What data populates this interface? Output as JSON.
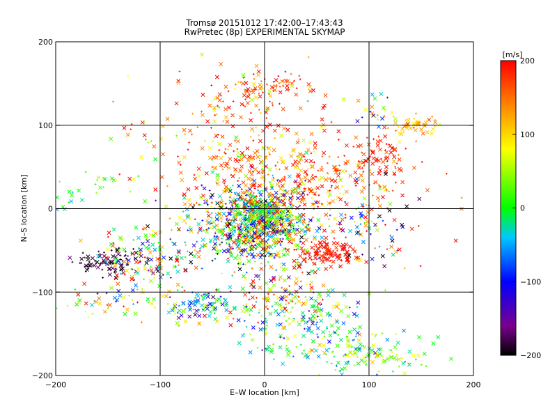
{
  "chart_data": {
    "type": "scatter",
    "title": "Tromsø 20151012 17:42:00–17:43:43",
    "subtitle": "RwPretec (8p) EXPERIMENTAL SKYMAP",
    "xlabel": "E–W location [km]",
    "ylabel": "N–S location [km]",
    "xlim": [
      -200,
      200
    ],
    "ylim": [
      -200,
      200
    ],
    "xticks": [
      -200,
      -100,
      0,
      100,
      200
    ],
    "yticks": [
      -200,
      -100,
      0,
      100,
      200
    ],
    "xtick_labels": [
      "−200",
      "−100",
      "0",
      "100",
      "200"
    ],
    "ytick_labels": [
      "−200",
      "−100",
      "0",
      "100",
      "200"
    ],
    "grid": true,
    "colorbar": {
      "label": "[m/s]",
      "vmin": -200,
      "vmax": 200,
      "ticks": [
        200,
        100,
        0,
        -100,
        -200
      ],
      "tick_labels": [
        "200",
        "100",
        "0",
        "−100",
        "−200"
      ],
      "colors": [
        "#000000",
        "#7a0090",
        "#0000ff",
        "#00c8ff",
        "#00ff00",
        "#ffff00",
        "#ff9600",
        "#ff0000"
      ]
    },
    "markers": [
      "x",
      "+"
    ],
    "clusters": [
      {
        "cx": -10,
        "cy": -20,
        "sx": 30,
        "sy": 25,
        "n": 900,
        "vmean": 0,
        "vsd": 120
      },
      {
        "cx": 0,
        "cy": -5,
        "sx": 10,
        "sy": 10,
        "n": 220,
        "vmean": 20,
        "vsd": 80
      },
      {
        "cx": 60,
        "cy": -55,
        "sx": 15,
        "sy": 8,
        "n": 130,
        "vmean": 190,
        "vsd": 10
      },
      {
        "cx": 40,
        "cy": 30,
        "sx": 45,
        "sy": 30,
        "n": 260,
        "vmean": 160,
        "vsd": 50
      },
      {
        "cx": -20,
        "cy": 70,
        "sx": 55,
        "sy": 40,
        "n": 260,
        "vmean": 150,
        "vsd": 70
      },
      {
        "cx": 0,
        "cy": 140,
        "sx": 25,
        "sy": 12,
        "n": 90,
        "vmean": 170,
        "vsd": 30
      },
      {
        "cx": 110,
        "cy": 60,
        "sx": 15,
        "sy": 20,
        "n": 80,
        "vmean": 180,
        "vsd": 20
      },
      {
        "cx": 140,
        "cy": 100,
        "sx": 12,
        "sy": 8,
        "n": 50,
        "vmean": 110,
        "vsd": 30
      },
      {
        "cx": -150,
        "cy": -65,
        "sx": 15,
        "sy": 8,
        "n": 90,
        "vmean": -190,
        "vsd": 15
      },
      {
        "cx": -110,
        "cy": -60,
        "sx": 25,
        "sy": 20,
        "n": 150,
        "vmean": 40,
        "vsd": 140
      },
      {
        "cx": 40,
        "cy": -145,
        "sx": 30,
        "sy": 20,
        "n": 140,
        "vmean": -20,
        "vsd": 60
      },
      {
        "cx": 100,
        "cy": -175,
        "sx": 30,
        "sy": 12,
        "n": 120,
        "vmean": 20,
        "vsd": 60
      },
      {
        "cx": -60,
        "cy": -115,
        "sx": 20,
        "sy": 12,
        "n": 100,
        "vmean": -20,
        "vsd": 80
      },
      {
        "cx": 20,
        "cy": -110,
        "sx": 25,
        "sy": 15,
        "n": 120,
        "vmean": 100,
        "vsd": 100
      },
      {
        "cx": -150,
        "cy": -115,
        "sx": 30,
        "sy": 10,
        "n": 50,
        "vmean": 80,
        "vsd": 100
      },
      {
        "cx": -190,
        "cy": 15,
        "sx": 10,
        "sy": 8,
        "n": 12,
        "vmean": -20,
        "vsd": 30
      },
      {
        "cx": -150,
        "cy": 30,
        "sx": 20,
        "sy": 8,
        "n": 15,
        "vmean": 30,
        "vsd": 40
      },
      {
        "cx": 100,
        "cy": -30,
        "sx": 25,
        "sy": 30,
        "n": 80,
        "vmean": 0,
        "vsd": 160
      },
      {
        "cx": 105,
        "cy": 115,
        "sx": 10,
        "sy": 10,
        "n": 20,
        "vmean": 0,
        "vsd": 90
      }
    ]
  }
}
